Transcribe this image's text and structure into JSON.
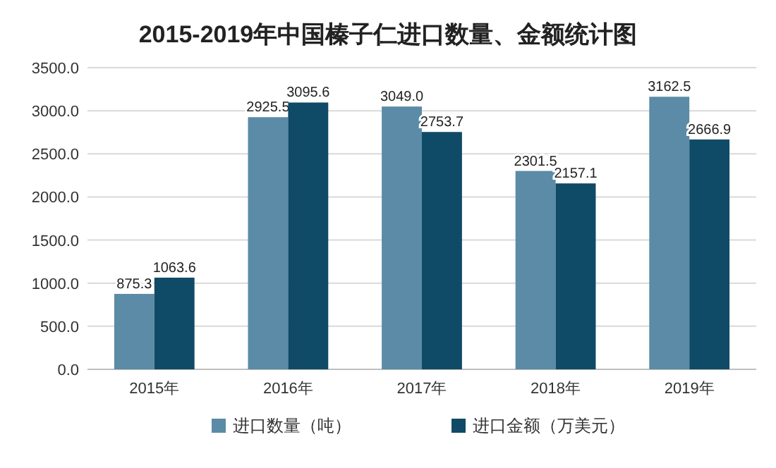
{
  "chart_data": {
    "type": "bar",
    "title": "2015-2019年中国榛子仁进口数量、金额统计图",
    "categories": [
      "2015年",
      "2016年",
      "2017年",
      "2018年",
      "2019年"
    ],
    "series": [
      {
        "name": "进口数量（吨）",
        "color": "#5b8ba6",
        "values": [
          875.3,
          2925.5,
          3049.0,
          2301.5,
          3162.5
        ],
        "value_labels": [
          "875.3",
          "2925.5",
          "3049.0",
          "2301.5",
          "3162.5"
        ]
      },
      {
        "name": "进口金额（万美元）",
        "color": "#0f4a66",
        "values": [
          1063.6,
          3095.6,
          2753.7,
          2157.1,
          2666.9
        ],
        "value_labels": [
          "1063.6",
          "3095.6",
          "2753.7",
          "2157.1",
          "2666.9"
        ]
      }
    ],
    "ylim": [
      0,
      3500
    ],
    "yticks": [
      {
        "value": 0,
        "label": "0.0"
      },
      {
        "value": 500,
        "label": "500.0"
      },
      {
        "value": 1000,
        "label": "1000.0"
      },
      {
        "value": 1500,
        "label": "1500.0"
      },
      {
        "value": 2000,
        "label": "2000.0"
      },
      {
        "value": 2500,
        "label": "2500.0"
      },
      {
        "value": 3000,
        "label": "3000.0"
      },
      {
        "value": 3500,
        "label": "3500.0"
      }
    ],
    "grid": "y",
    "legend": "bottom"
  }
}
